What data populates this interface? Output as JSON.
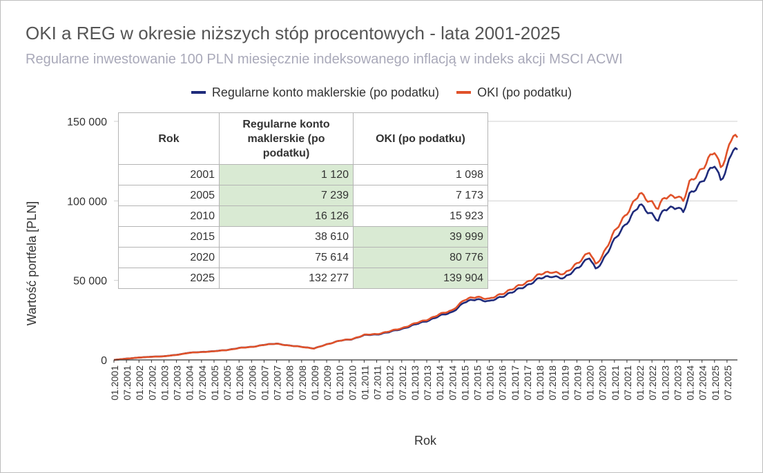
{
  "chart_data": {
    "type": "line",
    "title": "OKI a REG w okresie niższych stóp procentowych - lata 2001-2025",
    "subtitle": "Regularne inwestowanie 100 PLN miesięcznie indeksowanego inflacją w indeks akcji MSCI ACWI",
    "xlabel": "Rok",
    "ylabel": "Wartość portfela [PLN]",
    "ylim": [
      0,
      150000
    ],
    "yticks": [
      0,
      50000,
      100000,
      150000
    ],
    "ytick_labels": [
      "0",
      "50 000",
      "100 000",
      "150 000"
    ],
    "xlim": [
      "01.2001",
      "12.2025"
    ],
    "xtick_labels": [
      "01.2001",
      "07.2001",
      "01.2002",
      "07.2002",
      "01.2003",
      "07.2003",
      "01.2004",
      "07.2004",
      "01.2005",
      "07.2005",
      "01.2006",
      "07.2006",
      "01.2007",
      "07.2007",
      "01.2008",
      "07.2008",
      "01.2009",
      "07.2009",
      "01.2010",
      "07.2010",
      "01.2011",
      "07.2011",
      "01.2012",
      "07.2012",
      "01.2013",
      "07.2013",
      "01.2014",
      "07.2014",
      "01.2015",
      "07.2015",
      "01.2016",
      "07.2016",
      "01.2017",
      "07.2017",
      "01.2018",
      "07.2018",
      "01.2019",
      "07.2019",
      "01.2020",
      "07.2020",
      "01.2021",
      "07.2021",
      "01.2022",
      "07.2022",
      "01.2023",
      "07.2023",
      "01.2024",
      "07.2024",
      "01.2025",
      "07.2025"
    ],
    "grid": true,
    "legend_position": "top",
    "series": [
      {
        "name": "Regularne konto maklerskie (po podatku)",
        "color": "#1f2b7b",
        "points": [
          [
            "01.2001",
            0
          ],
          [
            "07.2001",
            800
          ],
          [
            "01.2002",
            1500
          ],
          [
            "07.2002",
            2000
          ],
          [
            "01.2003",
            2300
          ],
          [
            "07.2003",
            3200
          ],
          [
            "01.2004",
            4500
          ],
          [
            "07.2004",
            5000
          ],
          [
            "01.2005",
            5500
          ],
          [
            "07.2005",
            6200
          ],
          [
            "01.2006",
            7500
          ],
          [
            "07.2006",
            8200
          ],
          [
            "01.2007",
            9500
          ],
          [
            "07.2007",
            10300
          ],
          [
            "01.2008",
            9000
          ],
          [
            "07.2008",
            8300
          ],
          [
            "01.2009",
            7200
          ],
          [
            "07.2009",
            9800
          ],
          [
            "01.2010",
            12000
          ],
          [
            "07.2010",
            13000
          ],
          [
            "01.2011",
            15500
          ],
          [
            "07.2011",
            16000
          ],
          [
            "01.2012",
            17500
          ],
          [
            "07.2012",
            19500
          ],
          [
            "01.2013",
            22000
          ],
          [
            "07.2013",
            24500
          ],
          [
            "01.2014",
            27500
          ],
          [
            "07.2014",
            30000
          ],
          [
            "01.2015",
            36000
          ],
          [
            "07.2015",
            38500
          ],
          [
            "01.2016",
            36500
          ],
          [
            "07.2016",
            40000
          ],
          [
            "01.2017",
            43000
          ],
          [
            "07.2017",
            47000
          ],
          [
            "01.2018",
            51000
          ],
          [
            "07.2018",
            53000
          ],
          [
            "01.2019",
            51000
          ],
          [
            "07.2019",
            58000
          ],
          [
            "01.2020",
            64000
          ],
          [
            "04.2020",
            57000
          ],
          [
            "07.2020",
            62000
          ],
          [
            "01.2021",
            75000
          ],
          [
            "07.2021",
            87000
          ],
          [
            "01.2022",
            97000
          ],
          [
            "07.2022",
            92000
          ],
          [
            "10.2022",
            88000
          ],
          [
            "01.2023",
            94000
          ],
          [
            "07.2023",
            97000
          ],
          [
            "10.2023",
            93000
          ],
          [
            "01.2024",
            103000
          ],
          [
            "07.2024",
            113000
          ],
          [
            "01.2025",
            122000
          ],
          [
            "04.2025",
            113000
          ],
          [
            "07.2025",
            122000
          ],
          [
            "10.2025",
            133000
          ],
          [
            "12.2025",
            132277
          ]
        ]
      },
      {
        "name": "OKI (po podatku)",
        "color": "#e0522a",
        "points": [
          [
            "01.2001",
            0
          ],
          [
            "07.2001",
            780
          ],
          [
            "01.2002",
            1480
          ],
          [
            "07.2002",
            1980
          ],
          [
            "01.2003",
            2280
          ],
          [
            "07.2003",
            3150
          ],
          [
            "01.2004",
            4450
          ],
          [
            "07.2004",
            4950
          ],
          [
            "01.2005",
            5450
          ],
          [
            "07.2005",
            6150
          ],
          [
            "01.2006",
            7450
          ],
          [
            "07.2006",
            8150
          ],
          [
            "01.2007",
            9450
          ],
          [
            "07.2007",
            10250
          ],
          [
            "01.2008",
            8950
          ],
          [
            "07.2008",
            8250
          ],
          [
            "01.2009",
            7150
          ],
          [
            "07.2009",
            9750
          ],
          [
            "01.2010",
            12000
          ],
          [
            "07.2010",
            13100
          ],
          [
            "01.2011",
            15700
          ],
          [
            "07.2011",
            16300
          ],
          [
            "01.2012",
            17900
          ],
          [
            "07.2012",
            20000
          ],
          [
            "01.2013",
            22700
          ],
          [
            "07.2013",
            25300
          ],
          [
            "01.2014",
            28500
          ],
          [
            "07.2014",
            31200
          ],
          [
            "01.2015",
            37500
          ],
          [
            "07.2015",
            40000
          ],
          [
            "01.2016",
            38000
          ],
          [
            "07.2016",
            41800
          ],
          [
            "01.2017",
            45000
          ],
          [
            "07.2017",
            49000
          ],
          [
            "01.2018",
            53500
          ],
          [
            "07.2018",
            55800
          ],
          [
            "01.2019",
            53500
          ],
          [
            "07.2019",
            61000
          ],
          [
            "01.2020",
            67500
          ],
          [
            "04.2020",
            60000
          ],
          [
            "07.2020",
            65500
          ],
          [
            "01.2021",
            80000
          ],
          [
            "07.2021",
            93000
          ],
          [
            "01.2022",
            104000
          ],
          [
            "07.2022",
            99500
          ],
          [
            "10.2022",
            95500
          ],
          [
            "01.2023",
            101500
          ],
          [
            "07.2023",
            104000
          ],
          [
            "10.2023",
            100000
          ],
          [
            "01.2024",
            110500
          ],
          [
            "07.2024",
            121000
          ],
          [
            "01.2025",
            130500
          ],
          [
            "04.2025",
            121000
          ],
          [
            "07.2025",
            131000
          ],
          [
            "10.2025",
            142000
          ],
          [
            "12.2025",
            139904
          ]
        ]
      }
    ],
    "table": {
      "headers": [
        "Rok",
        "Regularne konto maklerskie (po podatku)",
        "OKI (po podatku)"
      ],
      "rows": [
        {
          "year": "2001",
          "reg": "1 120",
          "oki": "1 098",
          "highlight": "reg"
        },
        {
          "year": "2005",
          "reg": "7 239",
          "oki": "7 173",
          "highlight": "reg"
        },
        {
          "year": "2010",
          "reg": "16 126",
          "oki": "15 923",
          "highlight": "reg"
        },
        {
          "year": "2015",
          "reg": "38 610",
          "oki": "39 999",
          "highlight": "oki"
        },
        {
          "year": "2020",
          "reg": "75 614",
          "oki": "80 776",
          "highlight": "oki"
        },
        {
          "year": "2025",
          "reg": "132 277",
          "oki": "139 904",
          "highlight": "oki"
        }
      ]
    }
  }
}
